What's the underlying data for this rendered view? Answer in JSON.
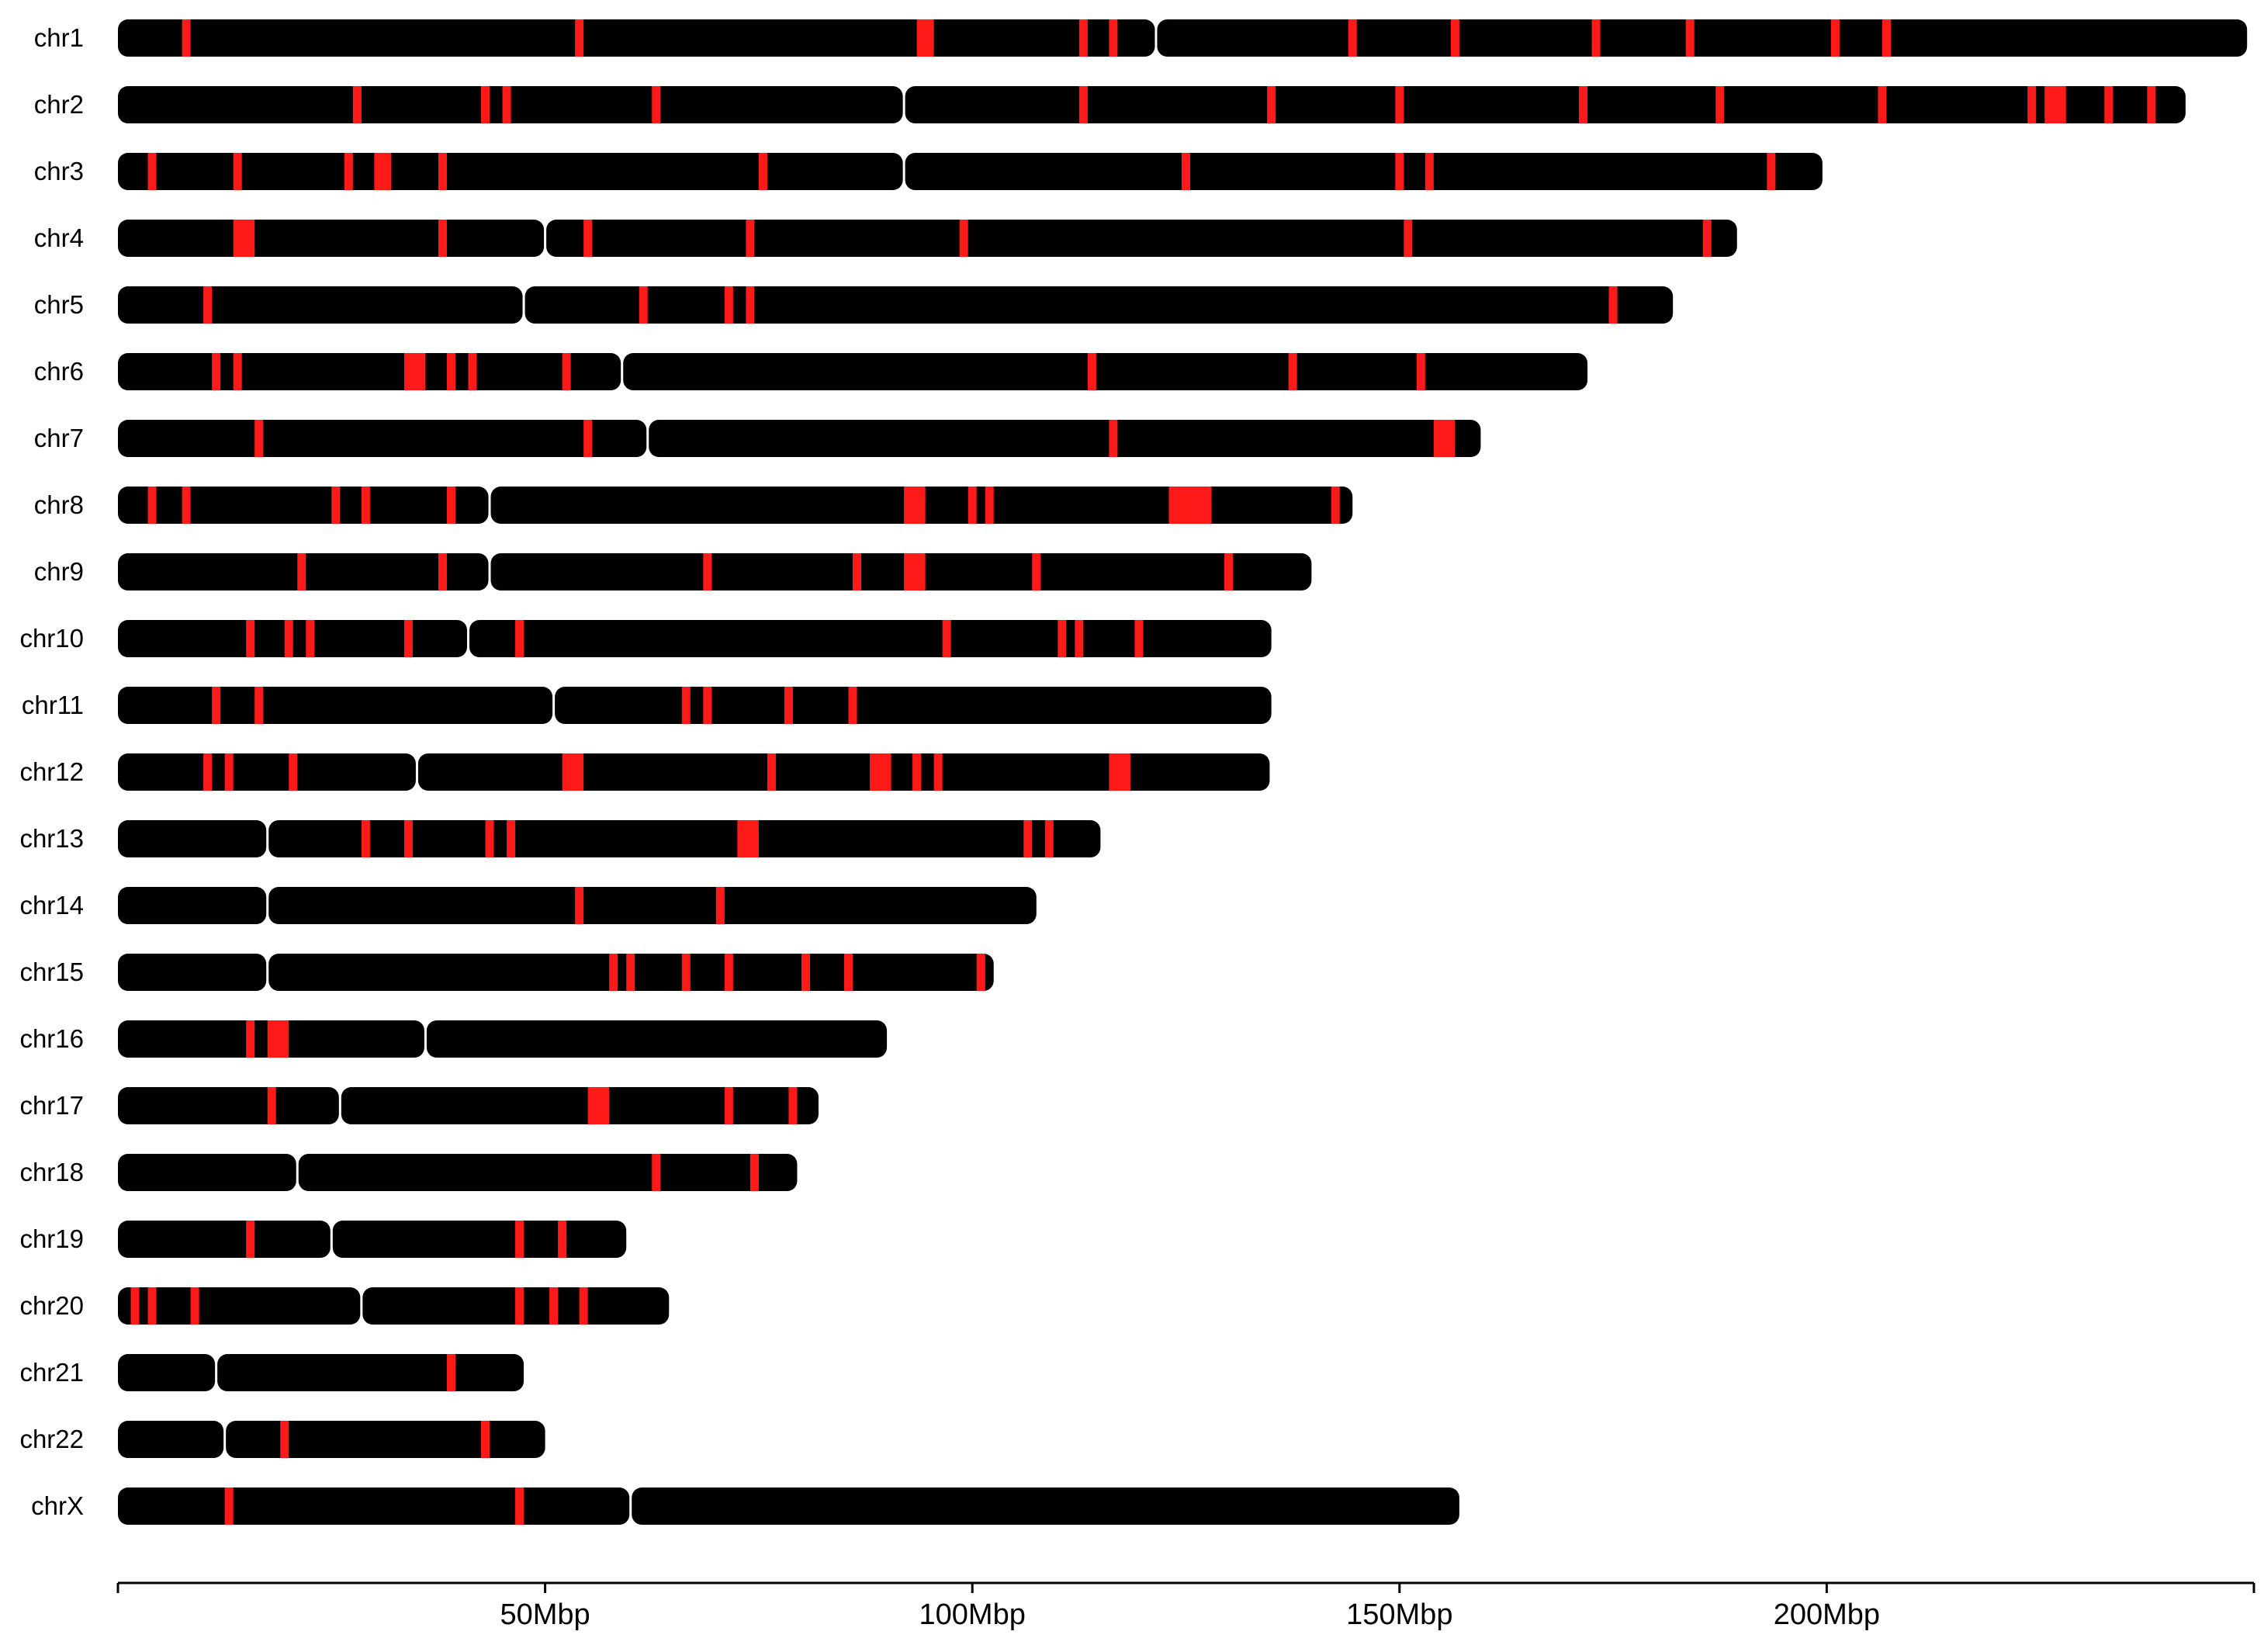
{
  "colors": {
    "chromosome": "#000000",
    "highlight": "#ff1a1a",
    "axis": "#000000"
  },
  "axis": {
    "unit": "Mbp",
    "max_mbp": 250,
    "ticks": [
      {
        "value": 0,
        "label": ""
      },
      {
        "value": 50,
        "label": "50Mbp"
      },
      {
        "value": 100,
        "label": "100Mbp"
      },
      {
        "value": 150,
        "label": "150Mbp"
      },
      {
        "value": 200,
        "label": "200Mbp"
      },
      {
        "value": 250,
        "label": ""
      }
    ]
  },
  "chromosomes": [
    {
      "name": "chr1",
      "length": 249.2,
      "centromere": 121.5,
      "regions": [
        [
          7.5,
          8.5
        ],
        [
          53.5,
          54.5
        ],
        [
          93.5,
          95.5
        ],
        [
          112.5,
          113.5
        ],
        [
          116.0,
          117.0
        ],
        [
          144.0,
          145.0
        ],
        [
          156.0,
          157.0
        ],
        [
          172.5,
          173.5
        ],
        [
          183.5,
          184.5
        ],
        [
          200.5,
          201.5
        ],
        [
          206.5,
          207.5
        ]
      ]
    },
    {
      "name": "chr2",
      "length": 242.0,
      "centromere": 92.0,
      "regions": [
        [
          27.5,
          28.5
        ],
        [
          42.5,
          43.5
        ],
        [
          45.0,
          46.0
        ],
        [
          62.5,
          63.5
        ],
        [
          112.5,
          113.5
        ],
        [
          134.5,
          135.5
        ],
        [
          149.5,
          150.5
        ],
        [
          171.0,
          172.0
        ],
        [
          187.0,
          188.0
        ],
        [
          206.0,
          207.0
        ],
        [
          223.5,
          224.5
        ],
        [
          225.5,
          228.0
        ],
        [
          232.5,
          233.5
        ],
        [
          237.5,
          238.5
        ]
      ]
    },
    {
      "name": "chr3",
      "length": 199.5,
      "centromere": 92.0,
      "regions": [
        [
          3.5,
          4.5
        ],
        [
          13.5,
          14.5
        ],
        [
          26.5,
          27.5
        ],
        [
          30.0,
          32.0
        ],
        [
          37.5,
          38.5
        ],
        [
          75.0,
          76.0
        ],
        [
          124.5,
          125.5
        ],
        [
          149.5,
          150.5
        ],
        [
          153.0,
          154.0
        ],
        [
          193.0,
          194.0
        ]
      ]
    },
    {
      "name": "chr4",
      "length": 189.5,
      "centromere": 50.0,
      "regions": [
        [
          13.5,
          16.0
        ],
        [
          37.5,
          38.5
        ],
        [
          54.5,
          55.5
        ],
        [
          73.5,
          74.5
        ],
        [
          98.5,
          99.5
        ],
        [
          150.5,
          151.5
        ],
        [
          185.5,
          186.5
        ]
      ]
    },
    {
      "name": "chr5",
      "length": 182.0,
      "centromere": 47.5,
      "regions": [
        [
          10.0,
          11.0
        ],
        [
          61.0,
          62.0
        ],
        [
          71.0,
          72.0
        ],
        [
          73.5,
          74.5
        ],
        [
          174.5,
          175.5
        ]
      ]
    },
    {
      "name": "chr6",
      "length": 172.0,
      "centromere": 59.0,
      "regions": [
        [
          11.0,
          12.0
        ],
        [
          13.5,
          14.5
        ],
        [
          33.5,
          36.0
        ],
        [
          38.5,
          39.5
        ],
        [
          41.0,
          42.0
        ],
        [
          52.0,
          53.0
        ],
        [
          113.5,
          114.5
        ],
        [
          137.0,
          138.0
        ],
        [
          152.0,
          153.0
        ]
      ]
    },
    {
      "name": "chr7",
      "length": 159.5,
      "centromere": 62.0,
      "regions": [
        [
          16.0,
          17.0
        ],
        [
          54.5,
          55.5
        ],
        [
          116.0,
          117.0
        ],
        [
          154.0,
          156.5
        ]
      ]
    },
    {
      "name": "chr8",
      "length": 144.5,
      "centromere": 43.5,
      "regions": [
        [
          3.5,
          4.5
        ],
        [
          7.5,
          8.5
        ],
        [
          25.0,
          26.0
        ],
        [
          28.5,
          29.5
        ],
        [
          38.5,
          39.5
        ],
        [
          92.0,
          94.5
        ],
        [
          99.5,
          100.5
        ],
        [
          101.5,
          102.5
        ],
        [
          123.0,
          128.0
        ],
        [
          142.0,
          143.0
        ]
      ]
    },
    {
      "name": "chr9",
      "length": 139.7,
      "centromere": 43.5,
      "regions": [
        [
          21.0,
          22.0
        ],
        [
          37.5,
          38.5
        ],
        [
          68.5,
          69.5
        ],
        [
          86.0,
          87.0
        ],
        [
          92.0,
          94.5
        ],
        [
          107.0,
          108.0
        ],
        [
          129.5,
          130.5
        ]
      ]
    },
    {
      "name": "chr10",
      "length": 135.0,
      "centromere": 41.0,
      "regions": [
        [
          15.0,
          16.0
        ],
        [
          19.5,
          20.5
        ],
        [
          22.0,
          23.0
        ],
        [
          33.5,
          34.5
        ],
        [
          46.5,
          47.5
        ],
        [
          96.5,
          97.5
        ],
        [
          110.0,
          111.0
        ],
        [
          112.0,
          113.0
        ],
        [
          119.0,
          120.0
        ]
      ]
    },
    {
      "name": "chr11",
      "length": 135.0,
      "centromere": 51.0,
      "regions": [
        [
          11.0,
          12.0
        ],
        [
          16.0,
          17.0
        ],
        [
          66.0,
          67.0
        ],
        [
          68.5,
          69.5
        ],
        [
          78.0,
          79.0
        ],
        [
          85.5,
          86.5
        ]
      ]
    },
    {
      "name": "chr12",
      "length": 134.8,
      "centromere": 35.0,
      "regions": [
        [
          10.0,
          11.0
        ],
        [
          12.5,
          13.5
        ],
        [
          20.0,
          21.0
        ],
        [
          52.0,
          54.5
        ],
        [
          76.0,
          77.0
        ],
        [
          88.0,
          90.5
        ],
        [
          93.0,
          94.0
        ],
        [
          95.5,
          96.5
        ],
        [
          116.0,
          118.5
        ]
      ]
    },
    {
      "name": "chr13",
      "length": 115.0,
      "centromere": 17.5,
      "regions": [
        [
          28.5,
          29.5
        ],
        [
          33.5,
          34.5
        ],
        [
          43.0,
          44.0
        ],
        [
          45.5,
          46.5
        ],
        [
          72.5,
          75.0
        ],
        [
          106.0,
          107.0
        ],
        [
          108.5,
          109.5
        ]
      ]
    },
    {
      "name": "chr14",
      "length": 107.5,
      "centromere": 17.5,
      "regions": [
        [
          53.5,
          54.5
        ],
        [
          70.0,
          71.0
        ]
      ]
    },
    {
      "name": "chr15",
      "length": 102.5,
      "centromere": 17.5,
      "regions": [
        [
          57.5,
          58.5
        ],
        [
          59.5,
          60.5
        ],
        [
          66.0,
          67.0
        ],
        [
          71.0,
          72.0
        ],
        [
          80.0,
          81.0
        ],
        [
          85.0,
          86.0
        ],
        [
          100.5,
          101.5
        ]
      ]
    },
    {
      "name": "chr16",
      "length": 90.0,
      "centromere": 36.0,
      "regions": [
        [
          15.0,
          16.0
        ],
        [
          17.5,
          20.0
        ]
      ]
    },
    {
      "name": "chr17",
      "length": 82.0,
      "centromere": 26.0,
      "regions": [
        [
          17.5,
          18.5
        ],
        [
          55.0,
          57.5
        ],
        [
          71.0,
          72.0
        ],
        [
          78.5,
          79.5
        ]
      ]
    },
    {
      "name": "chr18",
      "length": 79.5,
      "centromere": 21.0,
      "regions": [
        [
          62.5,
          63.5
        ],
        [
          74.0,
          75.0
        ]
      ]
    },
    {
      "name": "chr19",
      "length": 59.5,
      "centromere": 25.0,
      "regions": [
        [
          15.0,
          16.0
        ],
        [
          46.5,
          47.5
        ],
        [
          51.5,
          52.5
        ]
      ]
    },
    {
      "name": "chr20",
      "length": 64.5,
      "centromere": 28.5,
      "regions": [
        [
          1.5,
          2.5
        ],
        [
          3.5,
          4.5
        ],
        [
          8.5,
          9.5
        ],
        [
          46.5,
          47.5
        ],
        [
          50.5,
          51.5
        ],
        [
          54.0,
          55.0
        ]
      ]
    },
    {
      "name": "chr21",
      "length": 47.5,
      "centromere": 11.5,
      "regions": [
        [
          38.5,
          39.5
        ]
      ]
    },
    {
      "name": "chr22",
      "length": 50.0,
      "centromere": 12.5,
      "regions": [
        [
          19.0,
          20.0
        ],
        [
          42.5,
          43.5
        ]
      ]
    },
    {
      "name": "chrX",
      "length": 157.0,
      "centromere": 60.0,
      "regions": [
        [
          12.5,
          13.5
        ],
        [
          46.5,
          47.5
        ]
      ]
    }
  ]
}
